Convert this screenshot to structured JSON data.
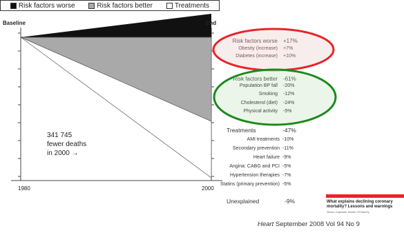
{
  "legend": {
    "worse": "Risk factors worse",
    "better": "Risk factors better",
    "treatments": "Treatments",
    "colors": {
      "worse": "#111111",
      "better": "#a9a9a9",
      "treatments": "#ffffff"
    }
  },
  "axis": {
    "baseline": "Baseline",
    "end": "End",
    "start_year": "1980",
    "end_year": "2000"
  },
  "deaths_note": {
    "line1": "341 745",
    "line2": "fewer deaths",
    "line3": "in 2000 →"
  },
  "highlights": {
    "worse_ellipse_color": "#e8232a",
    "better_ellipse_color": "#1a8a1a"
  },
  "table": {
    "worse": {
      "header": {
        "label": "Risk factors worse",
        "value": "+17%"
      },
      "rows": [
        {
          "label": "Obesity (increase)",
          "value": "+7%"
        },
        {
          "label": "Diabetes (increase)",
          "value": "+10%"
        }
      ]
    },
    "better": {
      "header": {
        "label": "Risk factors better",
        "value": "-61%"
      },
      "rows": [
        {
          "label": "Population BP fall",
          "value": "-20%"
        },
        {
          "label": "Smoking",
          "value": "-12%"
        },
        {
          "label": "Cholesterol (diet)",
          "value": "-24%"
        },
        {
          "label": "Physical activity",
          "value": "-5%"
        }
      ]
    },
    "treatments": {
      "header": {
        "label": "Treatments",
        "value": "-47%"
      },
      "rows": [
        {
          "label": "AMI treatments",
          "value": "-10%"
        },
        {
          "label": "Secondary prevention",
          "value": "-11%"
        },
        {
          "label": "Heart failure",
          "value": "-9%"
        },
        {
          "label": "Angina: CABG and PCI",
          "value": "-5%"
        },
        {
          "label": "Hypertension therapies",
          "value": "-7%"
        },
        {
          "label": "Statins (primary prevention)",
          "value": "-5%"
        }
      ]
    },
    "unexplained": {
      "label": "Unexplained",
      "value": "-9%"
    }
  },
  "paper": {
    "title": "What explains declining coronary mortality? Lessons and warnings",
    "authors": "Simon Capewell, Martin O'Flaherty",
    "accent_color": "#e8232a"
  },
  "journal": {
    "name": "Heart",
    "rest": "September 2008 Vol 94 No 9"
  },
  "chart_data": {
    "type": "area",
    "x": [
      "1980",
      "2000"
    ],
    "series": [
      {
        "name": "Risk factors worse",
        "values": [
          0,
          17
        ]
      },
      {
        "name": "Risk factors better",
        "values": [
          0,
          -61
        ]
      },
      {
        "name": "Treatments",
        "values": [
          0,
          -47
        ]
      }
    ],
    "unexplained_percent": -9,
    "deaths_prevented_2000": 341745,
    "ylabel": "",
    "xlabel": ""
  }
}
